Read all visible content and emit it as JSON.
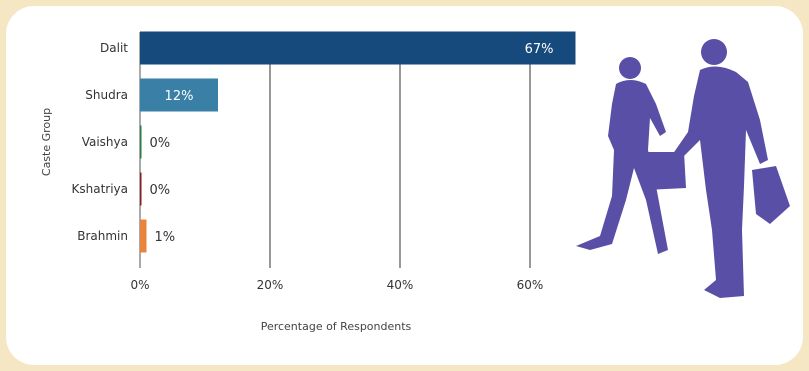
{
  "chart_data": {
    "type": "bar",
    "orientation": "horizontal",
    "categories": [
      "Dalit",
      "Shudra",
      "Vaishya",
      "Kshatriya",
      "Brahmin"
    ],
    "values": [
      67,
      12,
      0,
      0,
      1
    ],
    "data_labels": [
      "67%",
      "12%",
      "0%",
      "0%",
      "1%"
    ],
    "bar_colors": [
      "#174a7c",
      "#3a7fa6",
      "#2a7d3c",
      "#8a1e1e",
      "#e8843c"
    ],
    "xlabel": "Percentage of Respondents",
    "ylabel": "Caste Group",
    "xlim": [
      0,
      70
    ],
    "xticks": [
      0,
      20,
      40,
      60
    ],
    "xtick_labels": [
      "0%",
      "20%",
      "40%",
      "60%"
    ],
    "grid": "vertical"
  },
  "illustration": {
    "icon": "silhouette-people-walking-icon",
    "color": "#5a4fa6"
  }
}
